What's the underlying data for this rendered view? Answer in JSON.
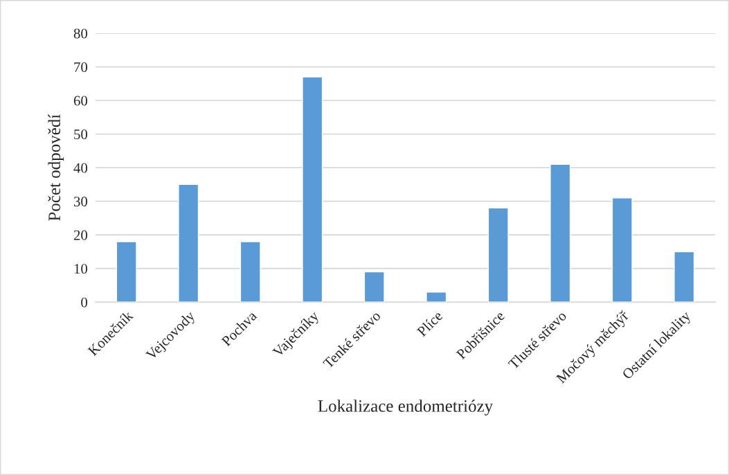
{
  "chart_data": {
    "type": "bar",
    "xlabel": "Lokalizace endometriózy",
    "ylabel": "Počet odpovědí",
    "categories": [
      "Konečník",
      "Vejcovody",
      "Pochva",
      "Vaječníky",
      "Tenké střevo",
      "Plíce",
      "Pobřišnice",
      "Tlusté střevo",
      "Močový měchýř",
      "Ostatní lokality"
    ],
    "values": [
      18,
      35,
      18,
      67,
      9,
      3,
      28,
      41,
      31,
      15
    ],
    "color": "#5b9bd5",
    "ylim": [
      0,
      80
    ],
    "yticks": [
      0,
      10,
      20,
      30,
      40,
      50,
      60,
      70,
      80
    ],
    "grid": "y"
  }
}
